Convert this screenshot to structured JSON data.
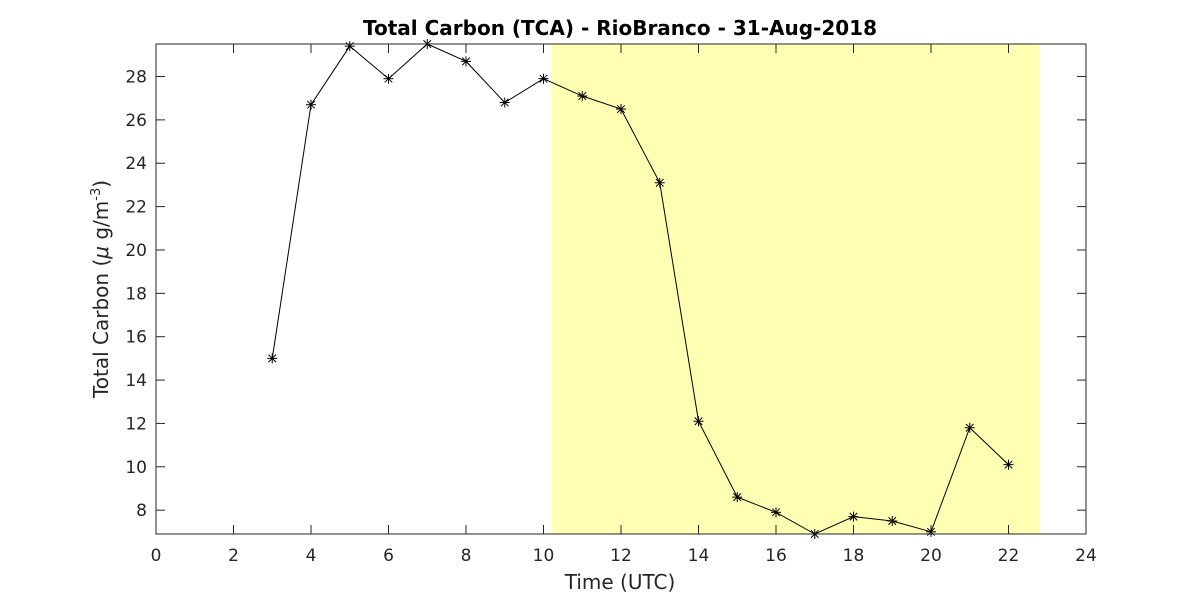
{
  "chart_data": {
    "type": "line",
    "title": "Total Carbon (TCA) - RioBranco - 31-Aug-2018",
    "xlabel": "Time (UTC)",
    "ylabel_main": "Total Carbon (",
    "ylabel_mu": "μ",
    "ylabel_unit": " g/m",
    "ylabel_exp": "-3",
    "ylabel_close": ")",
    "xlim": [
      0,
      24
    ],
    "ylim": [
      6.9,
      29.5
    ],
    "xticks": [
      0,
      2,
      4,
      6,
      8,
      10,
      12,
      14,
      16,
      18,
      20,
      22,
      24
    ],
    "yticks": [
      8,
      10,
      12,
      14,
      16,
      18,
      20,
      22,
      24,
      26,
      28
    ],
    "grid": false,
    "highlight": {
      "x_start": 10.2,
      "x_end": 22.8,
      "color": "#ffffb3"
    },
    "series": [
      {
        "marker": "asterisk",
        "color": "#000000",
        "x": [
          3,
          4,
          5,
          6,
          7,
          8,
          9,
          10,
          11,
          12,
          13,
          14,
          15,
          16,
          17,
          18,
          19,
          20,
          21,
          22
        ],
        "y": [
          15.0,
          26.7,
          29.4,
          27.9,
          29.5,
          28.7,
          26.8,
          27.9,
          27.1,
          26.5,
          23.1,
          12.1,
          8.6,
          7.9,
          6.9,
          7.7,
          7.5,
          7.0,
          11.8,
          10.1
        ]
      }
    ]
  }
}
